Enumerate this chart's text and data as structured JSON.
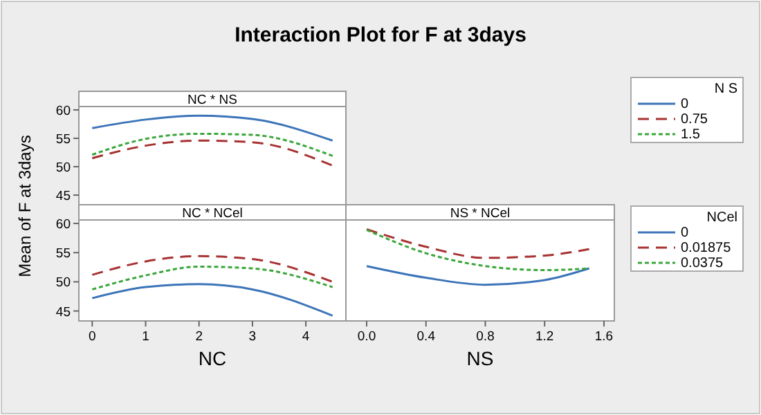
{
  "chart_data": [
    {
      "type": "line",
      "title": "Interaction Plot for F at 3days",
      "subtitle": "NC * NS",
      "ylabel": "Mean of F at 3days",
      "x": [
        0,
        1,
        2,
        3,
        4.5
      ],
      "xlim": [
        -0.25,
        4.75
      ],
      "ylim": [
        43.3,
        60.6
      ],
      "yticks": [
        45,
        50,
        55,
        60
      ],
      "tick_labels": "y",
      "legend": "right",
      "legend_title": "N S",
      "series": [
        {
          "name": "0",
          "color": "#3b74b8",
          "line_style": "solid",
          "values": [
            56.8,
            58.3,
            59.0,
            58.4,
            54.6
          ]
        },
        {
          "name": "0.75",
          "color": "#a83232",
          "line_style": "dashed",
          "values": [
            51.5,
            53.7,
            54.6,
            54.3,
            50.2
          ]
        },
        {
          "name": "1.5",
          "color": "#3aa63a",
          "line_style": "dotted",
          "values": [
            52.1,
            54.9,
            55.8,
            55.6,
            51.9
          ]
        }
      ]
    },
    {
      "type": "line",
      "subtitle": "NC * NCel",
      "xlabel": "NC",
      "x": [
        0,
        1,
        2,
        3,
        4.5
      ],
      "xlim": [
        -0.25,
        4.75
      ],
      "xticks": [
        0,
        1,
        2,
        3,
        4
      ],
      "ylim": [
        43.3,
        60.6
      ],
      "yticks": [
        45,
        50,
        55,
        60
      ],
      "series": [
        {
          "color": "#3b74b8",
          "line_style": "solid",
          "values": [
            47.2,
            49.1,
            49.6,
            48.7,
            44.2
          ]
        },
        {
          "color": "#a83232",
          "line_style": "dashed",
          "values": [
            51.2,
            53.5,
            54.4,
            53.9,
            50.0
          ]
        },
        {
          "color": "#3aa63a",
          "line_style": "dotted",
          "values": [
            48.7,
            51.1,
            52.6,
            52.3,
            49.1
          ]
        }
      ]
    },
    {
      "type": "line",
      "subtitle": "NS * NCel",
      "xlabel": "NS",
      "x": [
        0,
        0.4,
        0.8,
        1.2,
        1.5
      ],
      "xlim": [
        -0.14,
        1.67
      ],
      "xticks": [
        {
          "value": 0,
          "label": "0.0"
        },
        0.4,
        0.8,
        1.2,
        1.6
      ],
      "ylim": [
        43.3,
        60.6
      ],
      "tick_labels": "x",
      "legend": "right",
      "legend_title": "NCel",
      "series": [
        {
          "name": "0",
          "color": "#3b74b8",
          "line_style": "solid",
          "values": [
            52.7,
            50.7,
            49.5,
            50.3,
            52.3
          ]
        },
        {
          "name": "0.01875",
          "color": "#a83232",
          "line_style": "dashed",
          "values": [
            59.0,
            56.0,
            54.1,
            54.5,
            55.6
          ]
        },
        {
          "name": "0.0375",
          "color": "#3aa63a",
          "line_style": "dotted",
          "values": [
            58.9,
            54.9,
            52.7,
            52.0,
            52.3
          ]
        }
      ]
    }
  ]
}
